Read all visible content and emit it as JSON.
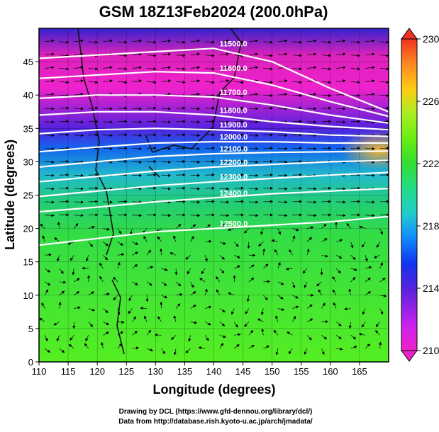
{
  "chart_data": {
    "type": "heatmap",
    "title": "GSM 18Z13Feb2024 (200.0hPa)",
    "xlabel": "Longitude (degrees)",
    "ylabel": "Latitude  (degrees)",
    "xlim": [
      110,
      170
    ],
    "ylim": [
      0,
      50
    ],
    "x_ticks": [
      "110",
      "115",
      "120",
      "125",
      "130",
      "135",
      "140",
      "145",
      "150",
      "155",
      "160",
      "165"
    ],
    "y_ticks": [
      "0",
      "5",
      "10",
      "15",
      "20",
      "25",
      "30",
      "35",
      "40",
      "45"
    ],
    "grid": true,
    "colorbar": {
      "ticks": [
        "210",
        "214",
        "218",
        "222",
        "226",
        "230"
      ],
      "range": [
        210,
        230
      ],
      "colors": [
        "#ee22cc",
        "#cc22ee",
        "#5522dd",
        "#1133ee",
        "#1188ff",
        "#22cccc",
        "#22dd88",
        "#33dd33",
        "#66ee11",
        "#aaee22",
        "#ffcc11",
        "#ff8822",
        "#ee3322"
      ]
    },
    "contours": [
      {
        "label": "11500.0",
        "points": [
          [
            110,
            45.5
          ],
          [
            120,
            46
          ],
          [
            130,
            46.5
          ],
          [
            140,
            47
          ],
          [
            150,
            45
          ],
          [
            160,
            41
          ],
          [
            170,
            37.5
          ]
        ]
      },
      {
        "label": "11600.0",
        "points": [
          [
            110,
            42.5
          ],
          [
            120,
            43
          ],
          [
            130,
            43.5
          ],
          [
            140,
            43.3
          ],
          [
            150,
            41.5
          ],
          [
            160,
            39
          ],
          [
            170,
            36.8
          ]
        ]
      },
      {
        "label": "11700.0",
        "points": [
          [
            110,
            39.5
          ],
          [
            120,
            40
          ],
          [
            130,
            40
          ],
          [
            140,
            39.7
          ],
          [
            150,
            38.5
          ],
          [
            160,
            37
          ],
          [
            170,
            35.8
          ]
        ]
      },
      {
        "label": "11800.0",
        "points": [
          [
            110,
            37
          ],
          [
            120,
            37.5
          ],
          [
            130,
            37.5
          ],
          [
            140,
            37
          ],
          [
            150,
            36
          ],
          [
            160,
            35.3
          ],
          [
            170,
            34.8
          ]
        ]
      },
      {
        "label": "11900.0",
        "points": [
          [
            110,
            34.2
          ],
          [
            120,
            34.8
          ],
          [
            130,
            35
          ],
          [
            140,
            34.8
          ],
          [
            150,
            34.5
          ],
          [
            160,
            34
          ],
          [
            170,
            33.8
          ]
        ]
      },
      {
        "label": "12000.0",
        "points": [
          [
            110,
            31.5
          ],
          [
            120,
            32.2
          ],
          [
            130,
            32.8
          ],
          [
            140,
            33
          ],
          [
            150,
            33
          ],
          [
            160,
            32.8
          ],
          [
            170,
            32.8
          ]
        ]
      },
      {
        "label": "12100.0",
        "points": [
          [
            110,
            29.2
          ],
          [
            120,
            30
          ],
          [
            130,
            30.8
          ],
          [
            140,
            31.2
          ],
          [
            150,
            31.4
          ],
          [
            160,
            31.5
          ],
          [
            170,
            31.6
          ]
        ]
      },
      {
        "label": "12200.0",
        "points": [
          [
            110,
            27
          ],
          [
            120,
            27.8
          ],
          [
            130,
            28.6
          ],
          [
            140,
            29.2
          ],
          [
            150,
            29.6
          ],
          [
            160,
            30
          ],
          [
            170,
            30.2
          ]
        ]
      },
      {
        "label": "12300.0",
        "points": [
          [
            110,
            24.8
          ],
          [
            120,
            25.6
          ],
          [
            130,
            26.4
          ],
          [
            140,
            27
          ],
          [
            150,
            27.5
          ],
          [
            160,
            28
          ],
          [
            170,
            28.4
          ]
        ]
      },
      {
        "label": "12400.0",
        "points": [
          [
            110,
            22.5
          ],
          [
            120,
            23.2
          ],
          [
            130,
            24
          ],
          [
            140,
            24.6
          ],
          [
            150,
            25.2
          ],
          [
            160,
            25.6
          ],
          [
            170,
            26
          ]
        ]
      },
      {
        "label": "12500.0",
        "points": [
          [
            110,
            17.5
          ],
          [
            120,
            18.5
          ],
          [
            130,
            19.5
          ],
          [
            140,
            20
          ],
          [
            150,
            20.5
          ],
          [
            160,
            21
          ],
          [
            170,
            21.8
          ]
        ]
      }
    ]
  },
  "credits": {
    "line1": "Drawing by DCL (https://www.gfd-dennou.org/library/dcl/)",
    "line2": "Data from http://database.rish.kyoto-u.ac.jp/arch/jmadata/"
  }
}
